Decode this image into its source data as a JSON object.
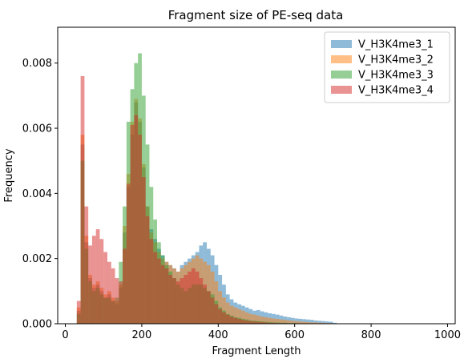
{
  "chart_data": {
    "type": "bar",
    "subtype": "histogram",
    "title": "Fragment size of PE-seq data",
    "xlabel": "Fragment Length",
    "ylabel": "Frequency",
    "xlim": [
      -20,
      1020
    ],
    "ylim": [
      0,
      0.0091
    ],
    "x_ticks": [
      0,
      200,
      400,
      600,
      800,
      1000
    ],
    "x_tick_labels": [
      "0",
      "200",
      "400",
      "600",
      "800",
      "1000"
    ],
    "y_ticks": [
      0,
      0.002,
      0.004,
      0.006,
      0.008
    ],
    "y_tick_labels": [
      "0.000",
      "0.002",
      "0.004",
      "0.006",
      "0.008"
    ],
    "legend_position": "top-right",
    "bin_width": 10,
    "bin_starts": [
      30,
      40,
      50,
      60,
      70,
      80,
      90,
      100,
      110,
      120,
      130,
      140,
      150,
      160,
      170,
      180,
      190,
      200,
      210,
      220,
      230,
      240,
      250,
      260,
      270,
      280,
      290,
      300,
      310,
      320,
      330,
      340,
      350,
      360,
      370,
      380,
      390,
      400,
      410,
      420,
      430,
      440,
      450,
      460,
      470,
      480,
      490,
      500,
      510,
      520,
      530,
      540,
      550,
      560,
      570,
      580,
      590,
      600,
      610,
      620,
      630,
      640,
      650,
      660,
      670,
      680,
      690,
      700
    ],
    "series": [
      {
        "name": "V_H3K4me3_1",
        "color": "#1f77b4",
        "values": [
          0.0004,
          0.0055,
          0.0025,
          0.0014,
          0.0011,
          0.0012,
          0.001,
          0.0008,
          0.0009,
          0.0007,
          0.0006,
          0.0011,
          0.0028,
          0.0042,
          0.0058,
          0.0068,
          0.0062,
          0.0048,
          0.0036,
          0.0029,
          0.0026,
          0.0023,
          0.0021,
          0.0019,
          0.0018,
          0.0017,
          0.0016,
          0.0018,
          0.0019,
          0.002,
          0.0021,
          0.0022,
          0.0024,
          0.0025,
          0.0023,
          0.0021,
          0.0018,
          0.0015,
          0.0012,
          0.0009,
          0.00075,
          0.00065,
          0.0006,
          0.00055,
          0.0005,
          0.00045,
          0.0004,
          0.00042,
          0.00038,
          0.00035,
          0.00032,
          0.0003,
          0.00028,
          0.00025,
          0.00022,
          0.0002,
          0.00018,
          0.00016,
          0.00015,
          0.00014,
          0.00013,
          0.00012,
          0.0001,
          9e-05,
          8e-05,
          7e-05,
          6e-05,
          3e-05
        ]
      },
      {
        "name": "V_H3K4me3_2",
        "color": "#ff7f0e",
        "values": [
          0.0005,
          0.0058,
          0.0027,
          0.0015,
          0.0012,
          0.0013,
          0.0011,
          0.0009,
          0.001,
          0.0008,
          0.0007,
          0.0012,
          0.003,
          0.0046,
          0.0062,
          0.0069,
          0.0063,
          0.0049,
          0.0036,
          0.0028,
          0.0025,
          0.0022,
          0.002,
          0.0019,
          0.0018,
          0.0017,
          0.0016,
          0.0017,
          0.0018,
          0.0019,
          0.002,
          0.0021,
          0.002,
          0.0019,
          0.0018,
          0.0016,
          0.0013,
          0.001,
          0.0008,
          0.00065,
          0.00055,
          0.0005,
          0.00045,
          0.0004,
          0.00035,
          0.0003,
          0.00028,
          0.00025,
          0.00022,
          0.0002,
          0.00018,
          0.00016,
          0.00015,
          0.00013,
          0.00012,
          0.0001,
          9e-05,
          8e-05,
          7e-05,
          6e-05,
          5e-05,
          4e-05,
          4e-05,
          3e-05,
          3e-05,
          2e-05,
          2e-05,
          1e-05
        ]
      },
      {
        "name": "V_H3K4me3_3",
        "color": "#2ca02c",
        "values": [
          0.0003,
          0.005,
          0.0023,
          0.0013,
          0.001,
          0.0011,
          0.0009,
          0.0008,
          0.0008,
          0.0007,
          0.0008,
          0.0019,
          0.0036,
          0.0062,
          0.0072,
          0.008,
          0.0083,
          0.007,
          0.0055,
          0.0042,
          0.0032,
          0.0025,
          0.0021,
          0.0018,
          0.0016,
          0.0014,
          0.0012,
          0.0011,
          0.001,
          0.0011,
          0.0012,
          0.0012,
          0.0012,
          0.0011,
          0.001,
          0.0009,
          0.0007,
          0.0005,
          0.0004,
          0.0003,
          0.00025,
          0.0002,
          0.00018,
          0.00015,
          0.00013,
          0.0001,
          9e-05,
          8e-05,
          7e-05,
          6e-05,
          5e-05,
          4e-05,
          4e-05,
          3e-05,
          3e-05,
          2e-05,
          2e-05,
          2e-05,
          1e-05,
          1e-05,
          1e-05,
          1e-05,
          1e-05,
          1e-05,
          0.0,
          0.0,
          0.0,
          0.0
        ]
      },
      {
        "name": "V_H3K4me3_4",
        "color": "#d62728",
        "values": [
          0.0007,
          0.0076,
          0.0036,
          0.0024,
          0.0027,
          0.0029,
          0.0026,
          0.0022,
          0.0019,
          0.0017,
          0.0014,
          0.0013,
          0.0023,
          0.0043,
          0.0061,
          0.0064,
          0.0058,
          0.0045,
          0.0033,
          0.0026,
          0.0022,
          0.002,
          0.0018,
          0.0017,
          0.0015,
          0.0014,
          0.0013,
          0.0014,
          0.0015,
          0.0016,
          0.0017,
          0.0016,
          0.0014,
          0.0012,
          0.001,
          0.0008,
          0.0006,
          0.00045,
          0.00035,
          0.00028,
          0.00022,
          0.00018,
          0.00015,
          0.00012,
          0.0001,
          8e-05,
          7e-05,
          6e-05,
          5e-05,
          4e-05,
          3e-05,
          3e-05,
          2e-05,
          2e-05,
          2e-05,
          1e-05,
          1e-05,
          1e-05,
          1e-05,
          0.0,
          0.0,
          0.0,
          0.0,
          0.0,
          0.0,
          0.0,
          0.0,
          0.0
        ]
      }
    ]
  }
}
